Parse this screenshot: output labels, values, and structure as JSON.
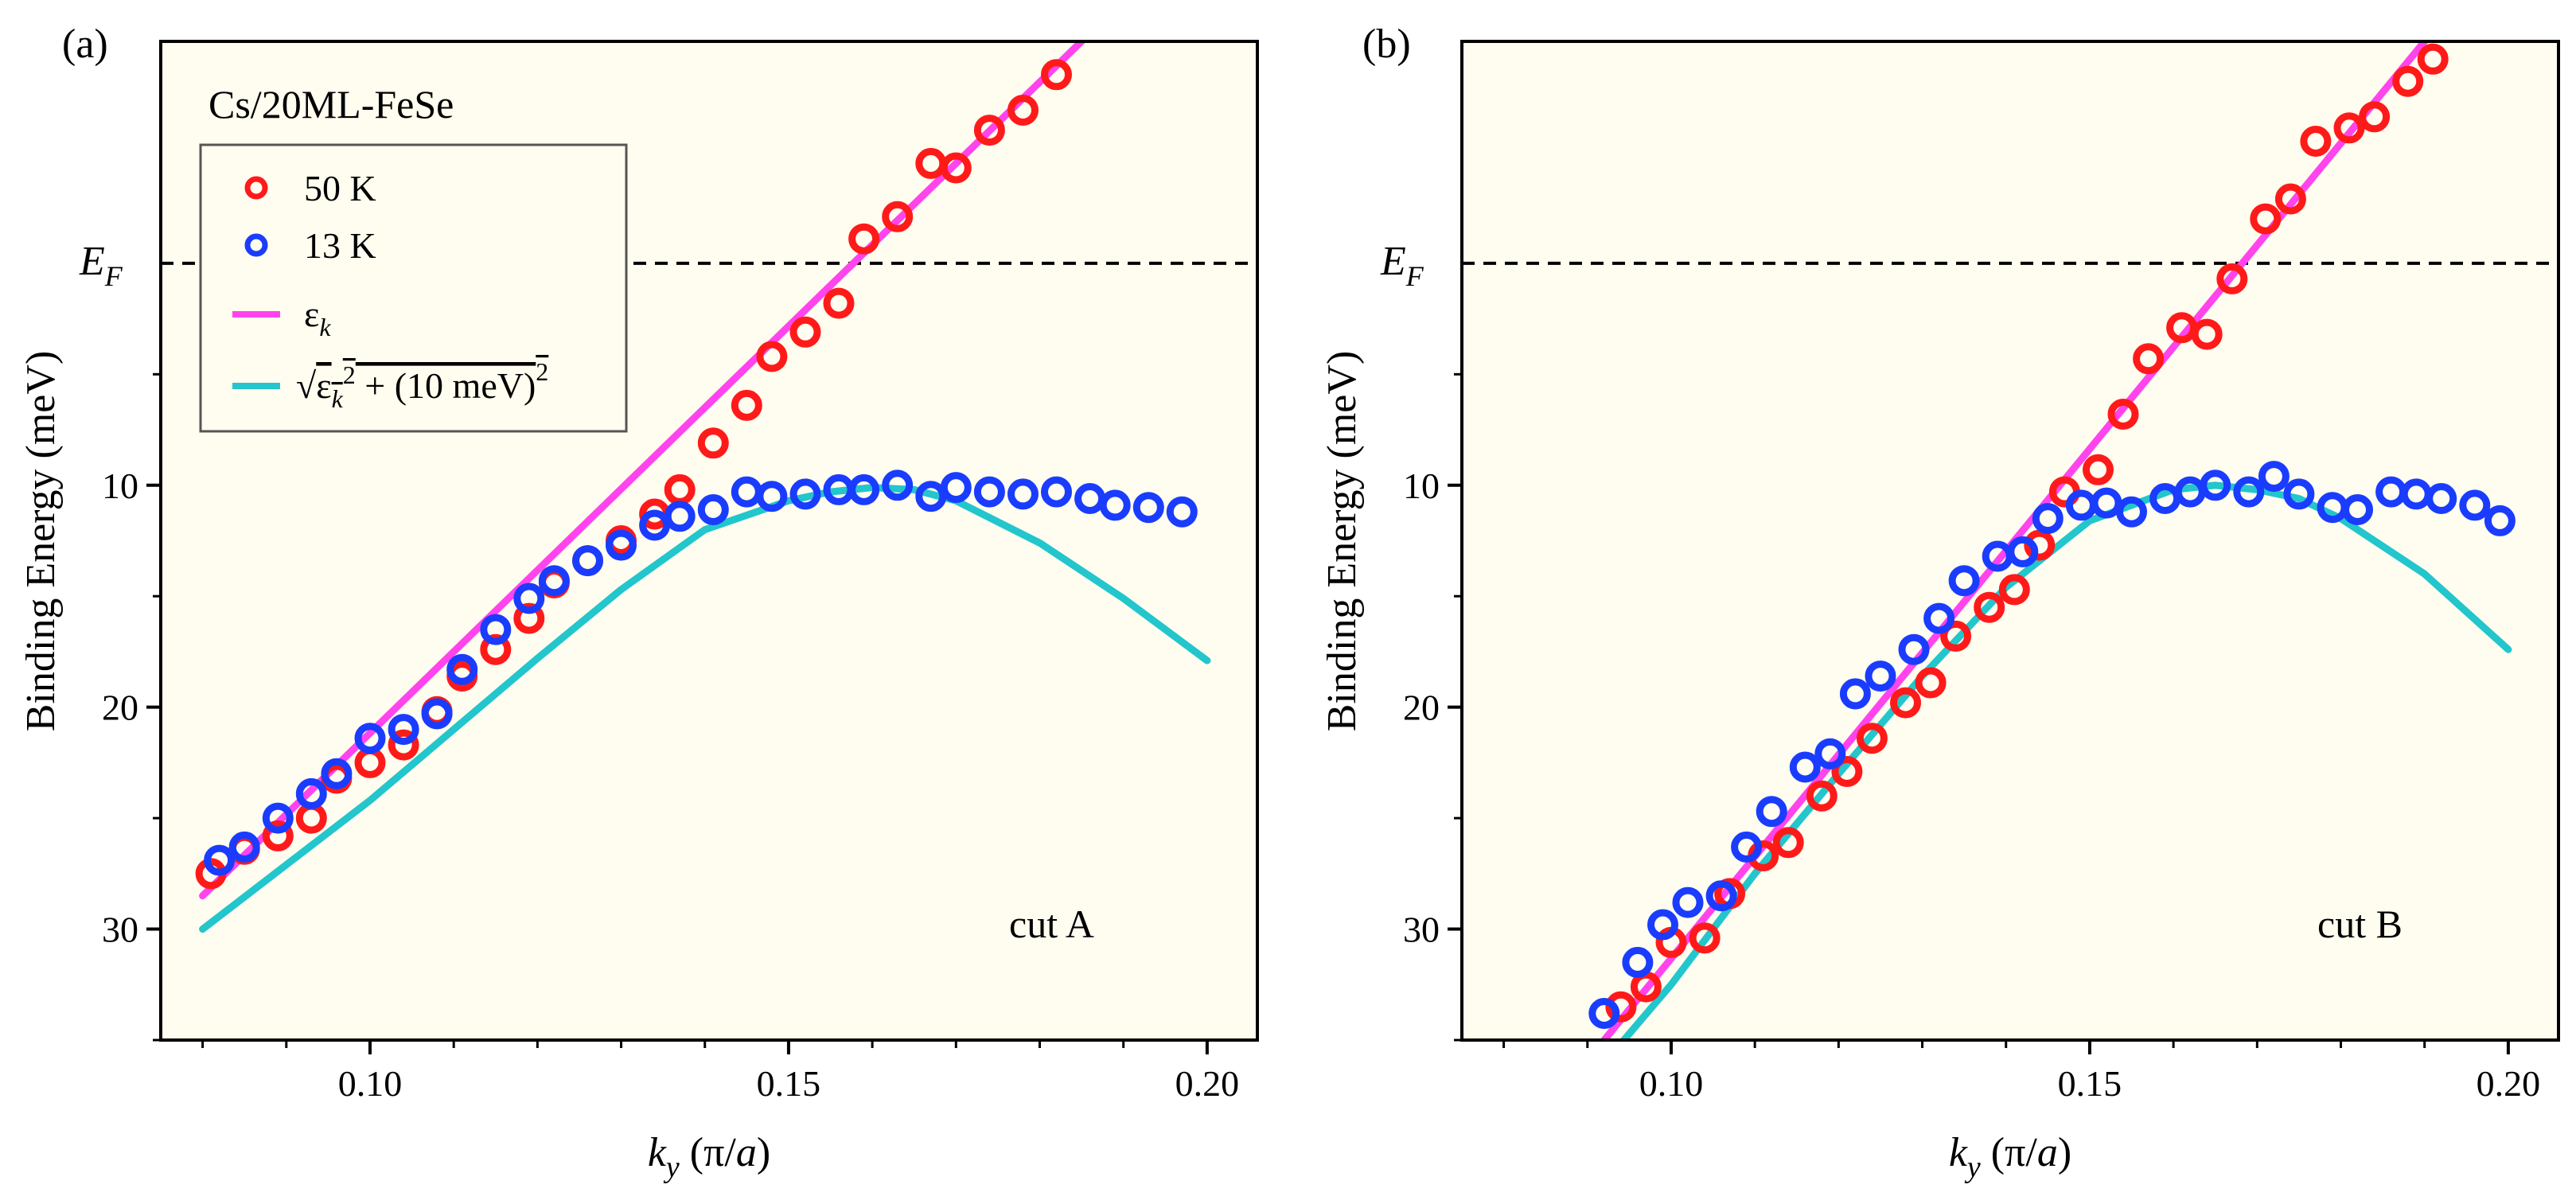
{
  "chart_data": [
    {
      "type": "scatter",
      "panel_label": "(a)",
      "title": "",
      "xlabel": "k_y (π/a)",
      "ylabel": "Binding Energy (meV)",
      "xlim": [
        0.075,
        0.206
      ],
      "ylim": [
        -10,
        35
      ],
      "y_inverted": true,
      "xticks": [
        0.1,
        0.15,
        0.2
      ],
      "xtick_labels": [
        "0.10",
        "0.15",
        "0.20"
      ],
      "yticks": [
        10,
        20,
        30
      ],
      "ytick_labels": [
        "10",
        "20",
        "30"
      ],
      "fermi_level": {
        "value": 0,
        "label": "E_F",
        "style": "dashed"
      },
      "background": "#fffdf0",
      "grid": false,
      "sample_label": "Cs/20ML-FeSe",
      "annotation": "cut A",
      "legend": {
        "placement": "top-left",
        "entries": [
          {
            "label": "50 K",
            "marker": "open-circle",
            "color": "#ff1a1a"
          },
          {
            "label": "13 K",
            "marker": "open-circle",
            "color": "#1a3cff"
          },
          {
            "label": "ε_k",
            "marker": "line",
            "color": "#ff44ee"
          },
          {
            "label": "√(ε_k² + (10 meV)²)",
            "marker": "line",
            "color": "#22c6cc"
          }
        ]
      },
      "series": [
        {
          "name": "50 K",
          "kind": "points",
          "color": "#ff1a1a",
          "x": [
            0.081,
            0.085,
            0.089,
            0.093,
            0.096,
            0.1,
            0.104,
            0.108,
            0.111,
            0.115,
            0.119,
            0.122,
            0.126,
            0.13,
            0.134,
            0.137,
            0.141,
            0.145,
            0.148,
            0.152,
            0.156,
            0.159,
            0.163,
            0.167,
            0.17,
            0.174,
            0.178,
            0.182
          ],
          "y": [
            27.5,
            26.4,
            25.8,
            25.0,
            23.2,
            22.5,
            21.7,
            20.2,
            18.6,
            17.4,
            16.0,
            14.4,
            13.4,
            12.5,
            11.3,
            10.2,
            8.1,
            6.4,
            4.2,
            3.1,
            1.8,
            -1.1,
            -2.1,
            -4.5,
            -4.3,
            -6.0,
            -6.9,
            -8.5
          ]
        },
        {
          "name": "13 K",
          "kind": "points",
          "color": "#1a3cff",
          "x": [
            0.082,
            0.085,
            0.089,
            0.093,
            0.096,
            0.1,
            0.104,
            0.108,
            0.111,
            0.115,
            0.119,
            0.122,
            0.126,
            0.13,
            0.134,
            0.137,
            0.141,
            0.145,
            0.148,
            0.152,
            0.156,
            0.159,
            0.163,
            0.167,
            0.17,
            0.174,
            0.178,
            0.182,
            0.186,
            0.189,
            0.193,
            0.197
          ],
          "y": [
            26.9,
            26.3,
            25.0,
            23.9,
            23.0,
            21.4,
            21.0,
            20.3,
            18.3,
            16.5,
            15.1,
            14.3,
            13.4,
            12.7,
            11.8,
            11.4,
            11.1,
            10.3,
            10.5,
            10.4,
            10.2,
            10.2,
            10.0,
            10.5,
            10.1,
            10.3,
            10.4,
            10.3,
            10.6,
            10.9,
            11.0,
            11.2
          ]
        },
        {
          "name": "ε_k",
          "kind": "line",
          "color": "#ff44ee",
          "x": [
            0.08,
            0.185
          ],
          "y": [
            28.5,
            -10.0
          ]
        },
        {
          "name": "√(ε_k² + (10 meV)²)",
          "kind": "line",
          "color": "#22c6cc",
          "x": [
            0.08,
            0.09,
            0.1,
            0.11,
            0.12,
            0.13,
            0.14,
            0.15,
            0.155,
            0.16,
            0.165,
            0.17,
            0.18,
            0.19,
            0.2
          ],
          "y": [
            30.0,
            27.1,
            24.2,
            21.0,
            17.8,
            14.7,
            12.0,
            10.7,
            10.3,
            10.1,
            10.2,
            10.7,
            12.6,
            15.1,
            17.9
          ]
        }
      ]
    },
    {
      "type": "scatter",
      "panel_label": "(b)",
      "title": "",
      "xlabel": "k_y (π/a)",
      "ylabel": "Binding Energy (meV)",
      "xlim": [
        0.075,
        0.206
      ],
      "ylim": [
        -10,
        35
      ],
      "y_inverted": true,
      "xticks": [
        0.1,
        0.15,
        0.2
      ],
      "xtick_labels": [
        "0.10",
        "0.15",
        "0.20"
      ],
      "yticks": [
        10,
        20,
        30
      ],
      "ytick_labels": [
        "10",
        "20",
        "30"
      ],
      "fermi_level": {
        "value": 0,
        "label": "E_F",
        "style": "dashed"
      },
      "background": "#fffdf0",
      "grid": false,
      "annotation": "cut B",
      "series": [
        {
          "name": "50 K",
          "kind": "points",
          "color": "#ff1a1a",
          "x": [
            0.094,
            0.097,
            0.1,
            0.104,
            0.107,
            0.111,
            0.114,
            0.118,
            0.121,
            0.124,
            0.128,
            0.131,
            0.134,
            0.138,
            0.141,
            0.144,
            0.147,
            0.151,
            0.154,
            0.157,
            0.161,
            0.164,
            0.167,
            0.171,
            0.174,
            0.177,
            0.181,
            0.184,
            0.188,
            0.191
          ],
          "y": [
            33.5,
            32.6,
            30.6,
            30.4,
            28.4,
            26.7,
            26.1,
            24.0,
            22.9,
            21.4,
            19.8,
            18.9,
            16.8,
            15.5,
            14.7,
            12.7,
            10.3,
            9.3,
            6.8,
            4.3,
            2.9,
            3.2,
            0.7,
            -2.0,
            -2.9,
            -5.5,
            -6.1,
            -6.6,
            -8.2,
            -9.2
          ]
        },
        {
          "name": "13 K",
          "kind": "points",
          "color": "#1a3cff",
          "x": [
            0.092,
            0.096,
            0.099,
            0.102,
            0.106,
            0.109,
            0.112,
            0.116,
            0.119,
            0.122,
            0.125,
            0.129,
            0.132,
            0.135,
            0.139,
            0.142,
            0.145,
            0.149,
            0.152,
            0.155,
            0.159,
            0.162,
            0.165,
            0.169,
            0.172,
            0.175,
            0.179,
            0.182,
            0.186,
            0.189,
            0.192,
            0.196,
            0.199
          ],
          "y": [
            33.8,
            31.5,
            29.8,
            28.8,
            28.5,
            26.3,
            24.7,
            22.7,
            22.1,
            19.4,
            18.6,
            17.4,
            16.0,
            14.3,
            13.2,
            13.0,
            11.5,
            10.9,
            10.8,
            11.2,
            10.6,
            10.3,
            10.0,
            10.3,
            9.6,
            10.4,
            11.0,
            11.1,
            10.3,
            10.4,
            10.6,
            10.9,
            11.6
          ]
        },
        {
          "name": "ε_k",
          "kind": "line",
          "color": "#ff44ee",
          "x": [
            0.092,
            0.19
          ],
          "y": [
            35.0,
            -10.0
          ]
        },
        {
          "name": "√(ε_k² + (10 meV)²)",
          "kind": "line",
          "color": "#22c6cc",
          "x": [
            0.093,
            0.1,
            0.11,
            0.12,
            0.13,
            0.14,
            0.15,
            0.16,
            0.165,
            0.17,
            0.175,
            0.18,
            0.19,
            0.2
          ],
          "y": [
            35.6,
            32.5,
            27.5,
            23.0,
            18.6,
            14.6,
            11.6,
            10.2,
            10.0,
            10.2,
            10.6,
            11.5,
            14.0,
            17.4
          ]
        }
      ]
    }
  ]
}
